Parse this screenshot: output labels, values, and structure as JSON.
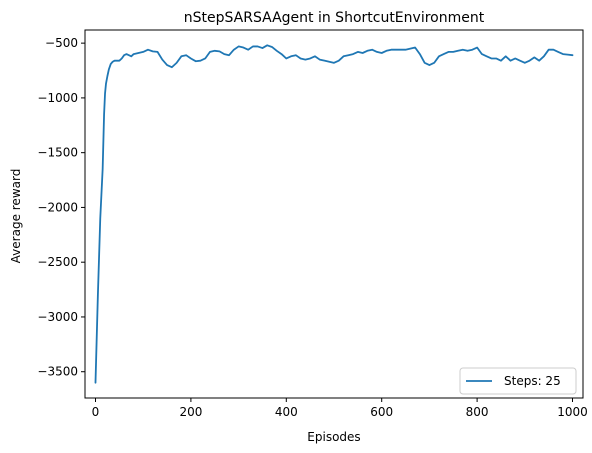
{
  "chart_data": {
    "type": "line",
    "title": "nStepSARSAAgent in ShortcutEnvironment",
    "xlabel": "Episodes",
    "ylabel": "Average reward",
    "xlim": [
      -22,
      1022
    ],
    "ylim": [
      -3740,
      -380
    ],
    "xticks": [
      0,
      200,
      400,
      600,
      800,
      1000
    ],
    "yticks": [
      -3500,
      -3000,
      -2500,
      -2000,
      -1500,
      -1000,
      -500
    ],
    "xtick_labels": [
      "0",
      "200",
      "400",
      "600",
      "800",
      "1000"
    ],
    "ytick_labels": [
      "−3500",
      "−3000",
      "−2500",
      "−2000",
      "−1500",
      "−1000",
      "−500"
    ],
    "grid": false,
    "legend_position": "lower-right",
    "series": [
      {
        "name": "Steps: 25",
        "color": "#1f77b4",
        "x": [
          0,
          5,
          10,
          15,
          18,
          20,
          22,
          25,
          28,
          32,
          36,
          40,
          45,
          50,
          55,
          60,
          65,
          70,
          75,
          80,
          90,
          100,
          110,
          120,
          130,
          140,
          150,
          160,
          170,
          180,
          190,
          200,
          210,
          220,
          230,
          240,
          250,
          260,
          270,
          280,
          290,
          300,
          310,
          320,
          330,
          340,
          350,
          360,
          370,
          380,
          390,
          400,
          410,
          420,
          430,
          440,
          450,
          460,
          470,
          480,
          490,
          500,
          510,
          520,
          530,
          540,
          550,
          560,
          570,
          580,
          590,
          600,
          610,
          620,
          630,
          640,
          650,
          660,
          670,
          680,
          690,
          700,
          710,
          720,
          730,
          740,
          750,
          760,
          770,
          780,
          790,
          800,
          810,
          820,
          830,
          840,
          850,
          860,
          870,
          880,
          890,
          900,
          910,
          920,
          930,
          940,
          950,
          960,
          970,
          980,
          990,
          1000
        ],
        "values": [
          -3600,
          -2800,
          -2100,
          -1650,
          -1150,
          -960,
          -870,
          -800,
          -740,
          -690,
          -670,
          -660,
          -660,
          -660,
          -640,
          -610,
          -600,
          -610,
          -620,
          -600,
          -590,
          -580,
          -560,
          -575,
          -580,
          -650,
          -700,
          -720,
          -680,
          -620,
          -610,
          -640,
          -665,
          -660,
          -640,
          -580,
          -570,
          -575,
          -600,
          -610,
          -560,
          -530,
          -540,
          -560,
          -530,
          -530,
          -545,
          -520,
          -535,
          -570,
          -600,
          -640,
          -620,
          -610,
          -640,
          -650,
          -640,
          -620,
          -650,
          -660,
          -670,
          -680,
          -660,
          -620,
          -610,
          -600,
          -580,
          -590,
          -570,
          -560,
          -580,
          -590,
          -570,
          -560,
          -560,
          -560,
          -560,
          -550,
          -540,
          -600,
          -680,
          -700,
          -680,
          -620,
          -600,
          -580,
          -580,
          -570,
          -560,
          -570,
          -560,
          -540,
          -600,
          -620,
          -640,
          -640,
          -660,
          -620,
          -660,
          -640,
          -660,
          -680,
          -660,
          -630,
          -660,
          -620,
          -560,
          -560,
          -580,
          -600,
          -605,
          -610
        ]
      }
    ]
  }
}
